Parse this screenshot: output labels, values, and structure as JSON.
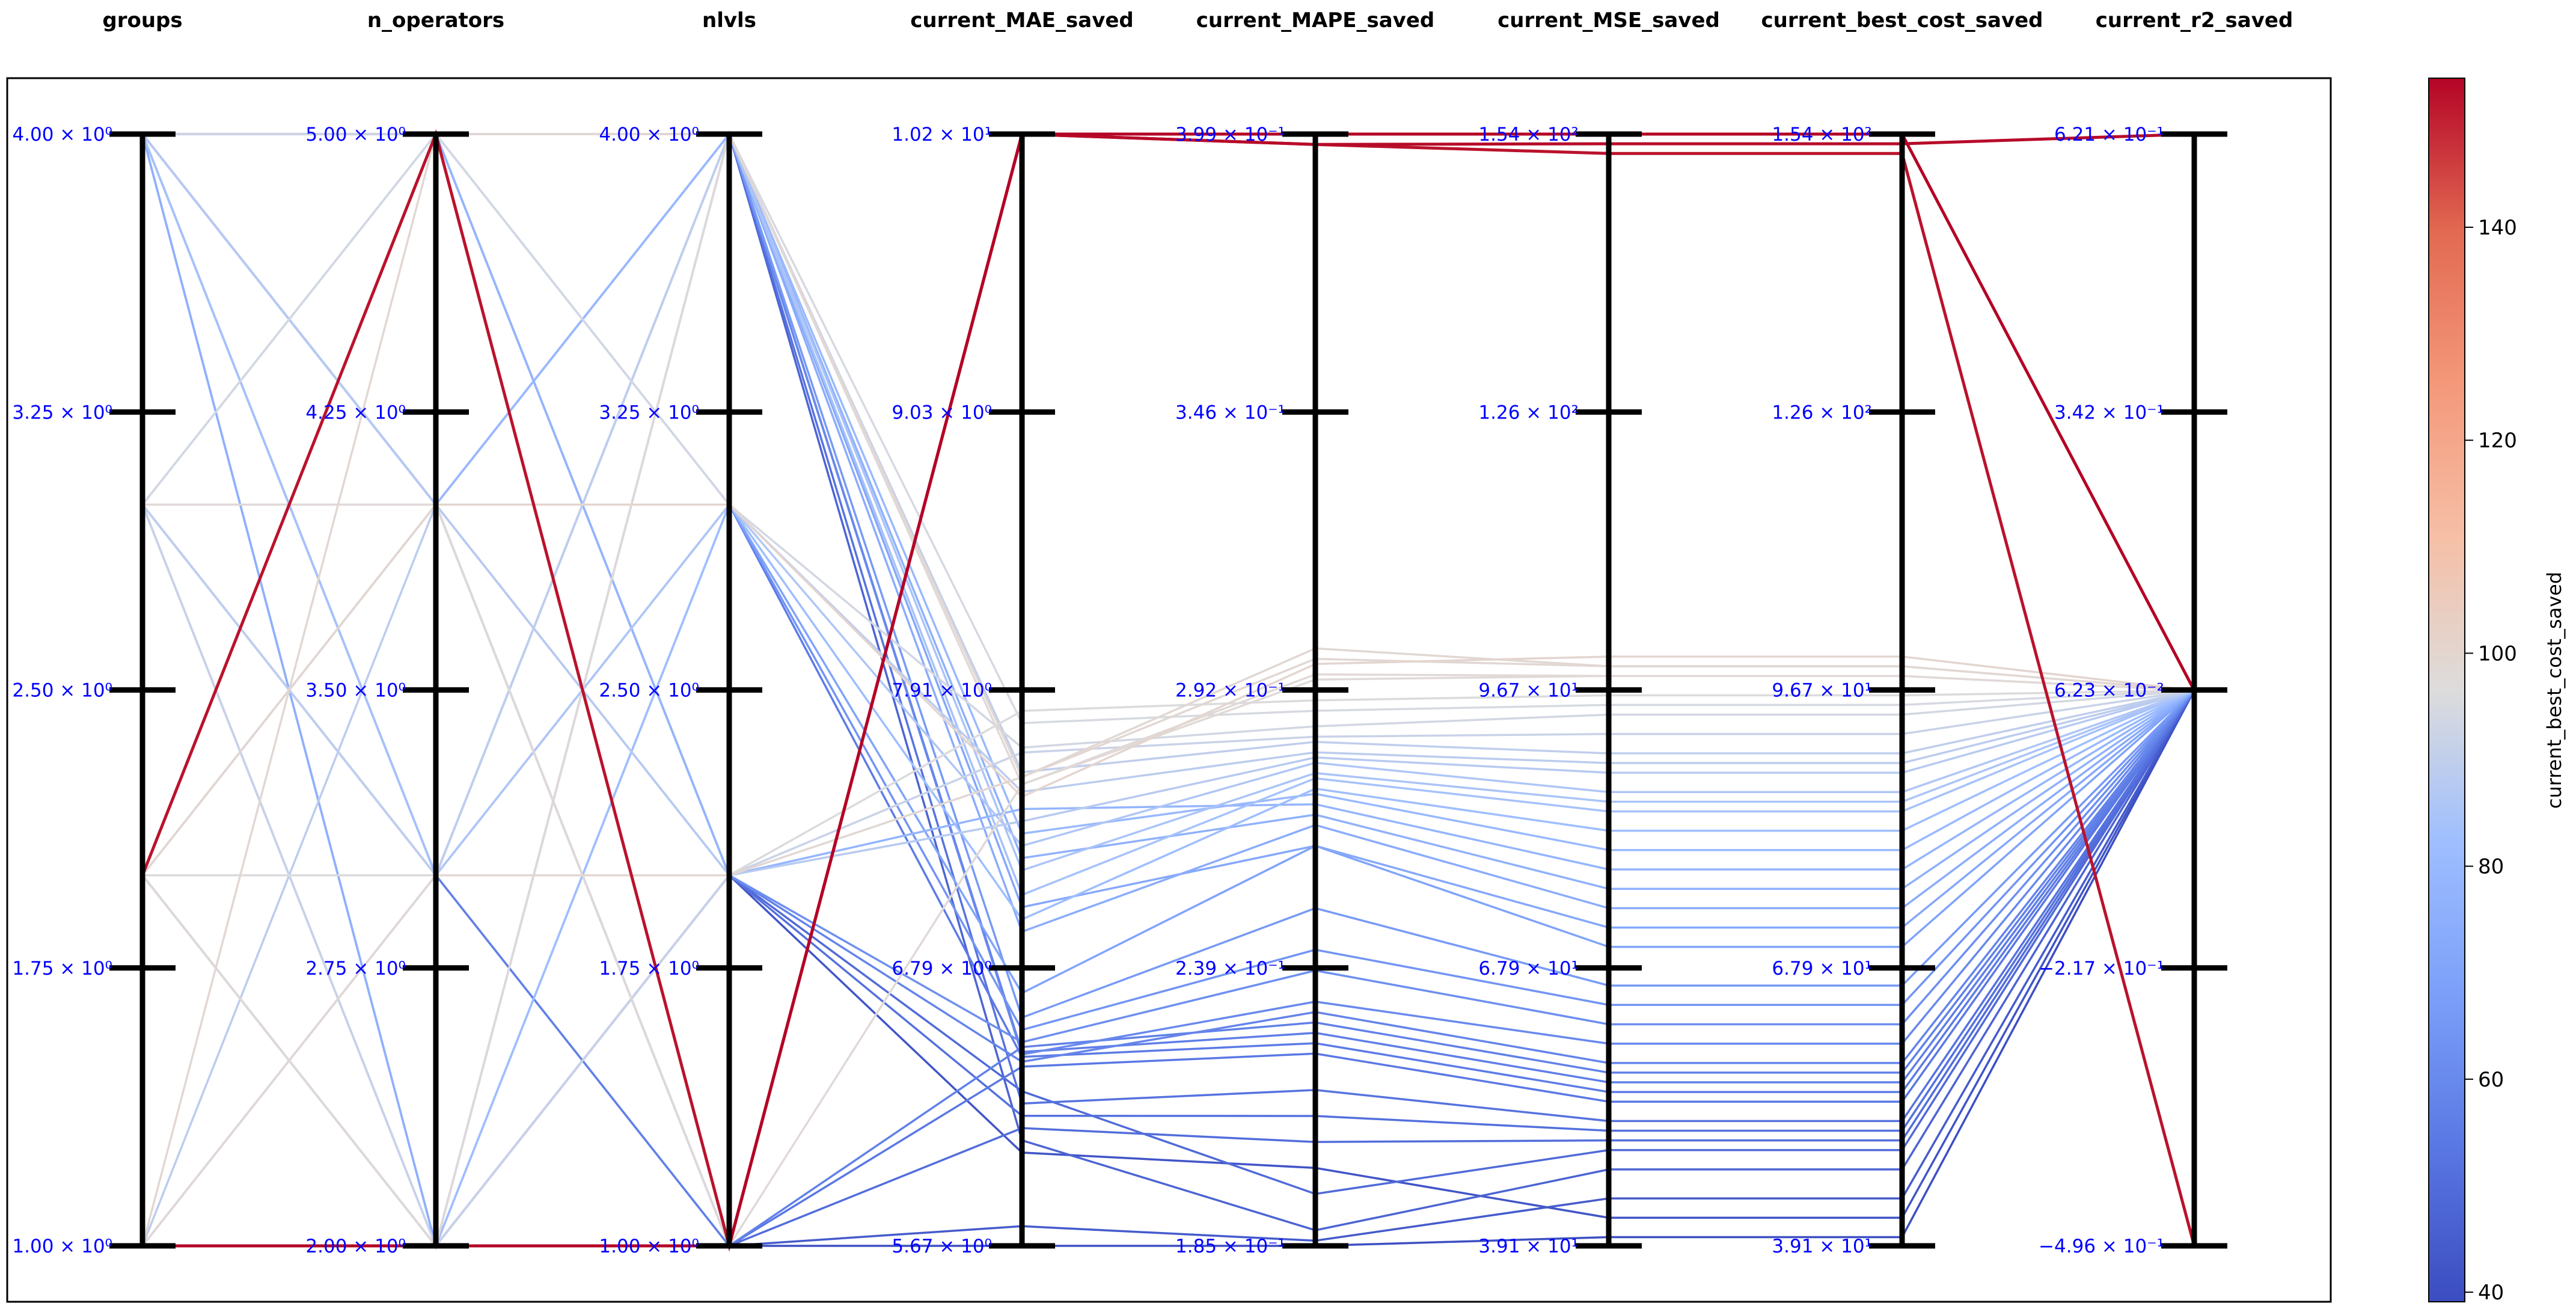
{
  "chart_data": {
    "type": "parallel-coordinates",
    "title": "",
    "axes": [
      {
        "name": "groups",
        "min": 1.0,
        "max": 4.0,
        "ticks": [
          "1.00 × 10⁰",
          "1.75 × 10⁰",
          "2.50 × 10⁰",
          "3.25 × 10⁰",
          "4.00 × 10⁰"
        ]
      },
      {
        "name": "n_operators",
        "min": 2.0,
        "max": 5.0,
        "ticks": [
          "2.00 × 10⁰",
          "2.75 × 10⁰",
          "3.50 × 10⁰",
          "4.25 × 10⁰",
          "5.00 × 10⁰"
        ]
      },
      {
        "name": "nlvls",
        "min": 1.0,
        "max": 4.0,
        "ticks": [
          "1.00 × 10⁰",
          "1.75 × 10⁰",
          "2.50 × 10⁰",
          "3.25 × 10⁰",
          "4.00 × 10⁰"
        ]
      },
      {
        "name": "current_MAE_saved",
        "min": 5.67,
        "max": 10.2,
        "ticks": [
          "5.67 × 10⁰",
          "6.79 × 10⁰",
          "7.91 × 10⁰",
          "9.03 × 10⁰",
          "1.02 × 10¹"
        ]
      },
      {
        "name": "current_MAPE_saved",
        "min": 0.185,
        "max": 0.399,
        "ticks": [
          "1.85 × 10⁻¹",
          "2.39 × 10⁻¹",
          "2.92 × 10⁻¹",
          "3.46 × 10⁻¹",
          "3.99 × 10⁻¹"
        ]
      },
      {
        "name": "current_MSE_saved",
        "min": 39.1,
        "max": 154,
        "ticks": [
          "3.91 × 10¹",
          "6.79 × 10¹",
          "9.67 × 10¹",
          "1.26 × 10²",
          "1.54 × 10²"
        ]
      },
      {
        "name": "current_best_cost_saved",
        "min": 39.1,
        "max": 154,
        "ticks": [
          "3.91 × 10¹",
          "6.79 × 10¹",
          "9.67 × 10¹",
          "1.26 × 10²",
          "1.54 × 10²"
        ]
      },
      {
        "name": "current_r2_saved",
        "min": -0.496,
        "max": 0.621,
        "ticks": [
          "−4.96 × 10⁻¹",
          "−2.17 × 10⁻¹",
          "6.23 × 10⁻²",
          "3.42 × 10⁻¹",
          "6.21 × 10⁻¹"
        ]
      }
    ],
    "colorbar": {
      "label": "current_best_cost_saved",
      "colormap": "coolwarm",
      "min": 39.1,
      "max": 154,
      "ticks": [
        "40",
        "60",
        "80",
        "100",
        "120",
        "140"
      ]
    },
    "series": [
      [
        1,
        2,
        1,
        10.2,
        0.399,
        154,
        154,
        0.062
      ],
      [
        1,
        2,
        1,
        10.2,
        0.397,
        153,
        153,
        0.621
      ],
      [
        2,
        5,
        1,
        10.2,
        0.397,
        152,
        152,
        -0.496
      ],
      [
        2,
        4,
        3,
        7.5,
        0.297,
        100,
        100,
        0.062
      ],
      [
        1,
        5,
        4,
        7.58,
        0.3,
        99,
        99,
        0.062
      ],
      [
        1,
        3,
        2,
        7.58,
        0.298,
        99,
        99,
        0.062
      ],
      [
        3,
        4,
        1,
        7.55,
        0.295,
        98,
        98,
        0.062
      ],
      [
        2,
        2,
        4,
        7.55,
        0.294,
        98,
        98,
        0.062
      ],
      [
        2,
        3,
        2,
        7.85,
        0.29,
        96,
        96,
        0.062
      ],
      [
        4,
        5,
        4,
        7.8,
        0.288,
        95,
        95,
        0.062
      ],
      [
        3,
        5,
        3,
        7.7,
        0.285,
        94,
        94,
        0.062
      ],
      [
        3,
        2,
        2,
        7.68,
        0.283,
        92,
        92,
        0.062
      ],
      [
        3,
        3,
        4,
        7.6,
        0.282,
        90,
        90,
        0.062
      ],
      [
        1,
        4,
        3,
        7.52,
        0.28,
        89,
        89,
        0.062
      ],
      [
        4,
        4,
        2,
        7.4,
        0.279,
        88,
        88,
        0.062
      ],
      [
        3,
        3,
        3,
        7.3,
        0.278,
        86,
        86,
        0.062
      ],
      [
        2,
        5,
        4,
        7.2,
        0.276,
        85,
        85,
        0.062
      ],
      [
        4,
        3,
        4,
        7.1,
        0.275,
        84,
        84,
        0.062
      ],
      [
        3,
        2,
        3,
        7.0,
        0.273,
        82,
        82,
        0.062
      ],
      [
        2,
        4,
        4,
        7.35,
        0.272,
        80,
        80,
        0.062
      ],
      [
        3,
        5,
        2,
        7.45,
        0.27,
        78,
        78,
        0.062
      ],
      [
        4,
        2,
        4,
        7.25,
        0.268,
        76,
        76,
        0.062
      ],
      [
        1,
        3,
        4,
        6.95,
        0.266,
        74,
        74,
        0.062
      ],
      [
        3,
        4,
        4,
        7.05,
        0.262,
        72,
        72,
        0.062
      ],
      [
        4,
        5,
        3,
        6.7,
        0.262,
        70,
        70,
        0.062
      ],
      [
        2,
        3,
        4,
        6.6,
        0.25,
        66,
        66,
        0.062
      ],
      [
        4,
        2,
        3,
        6.55,
        0.242,
        64,
        64,
        0.062
      ],
      [
        3,
        4,
        2,
        6.5,
        0.238,
        62,
        62,
        0.062
      ],
      [
        4,
        4,
        4,
        6.45,
        0.232,
        60,
        60,
        0.062
      ],
      [
        2,
        5,
        2,
        6.42,
        0.23,
        58,
        58,
        0.062
      ],
      [
        4,
        3,
        1,
        6.48,
        0.228,
        57,
        57,
        0.062
      ],
      [
        4,
        2,
        4,
        6.46,
        0.226,
        56,
        56,
        0.062
      ],
      [
        3,
        3,
        3,
        6.44,
        0.224,
        55,
        55,
        0.062
      ],
      [
        4,
        5,
        1,
        6.4,
        0.222,
        54,
        54,
        0.062
      ],
      [
        4,
        4,
        4,
        6.25,
        0.215,
        52,
        52,
        0.062
      ],
      [
        3,
        2,
        2,
        6.2,
        0.21,
        51,
        51,
        0.062
      ],
      [
        4,
        3,
        1,
        6.15,
        0.205,
        50,
        50,
        0.062
      ],
      [
        4,
        5,
        2,
        6.3,
        0.195,
        49,
        49,
        0.062
      ],
      [
        3,
        3,
        4,
        6.1,
        0.188,
        47,
        47,
        0.062
      ],
      [
        4,
        4,
        1,
        5.75,
        0.186,
        44,
        44,
        0.062
      ],
      [
        2,
        2,
        2,
        6.05,
        0.2,
        42,
        42,
        0.062
      ],
      [
        4,
        5,
        1,
        5.67,
        0.185,
        40,
        40,
        0.062
      ]
    ]
  }
}
